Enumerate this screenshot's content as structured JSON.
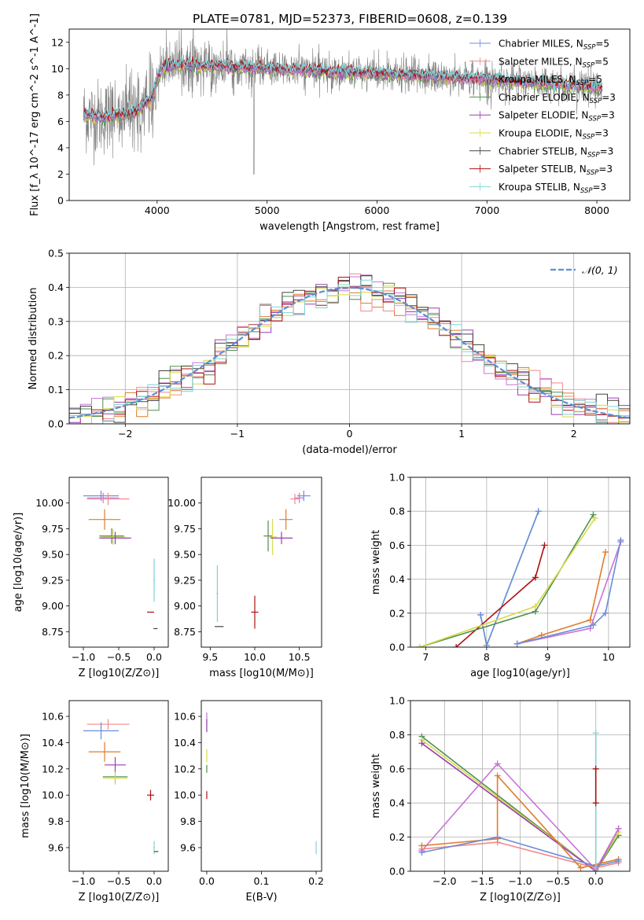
{
  "figure": {
    "title": "PLATE=0781, MJD=52373, FIBERID=0608, z=0.139"
  },
  "series_styles": [
    {
      "name": "Chabrier MILES, N_SSP=5",
      "color": "#6b8cd8"
    },
    {
      "name": "Salpeter MILES, N_SSP=5",
      "color": "#f08a8a"
    },
    {
      "name": "Kroupa MILES, N_SSP=5",
      "color": "#c874d6"
    },
    {
      "name": "Chabrier ELODIE, N_SSP=3",
      "color": "#4e8f4e"
    },
    {
      "name": "Salpeter ELODIE, N_SSP=3",
      "color": "#9a3fb0"
    },
    {
      "name": "Kroupa ELODIE, N_SSP=3",
      "color": "#d9d94a"
    },
    {
      "name": "Chabrier STELIB, N_SSP=3",
      "color": "#444444"
    },
    {
      "name": "Salpeter STELIB, N_SSP=3",
      "color": "#b01010"
    },
    {
      "name": "Kroupa STELIB, N_SSP=3",
      "color": "#7fd3d6"
    },
    {
      "name": "",
      "color": "#e07b2a"
    },
    {
      "name": "",
      "color": "#8ab83a"
    }
  ],
  "chart_data": [
    {
      "id": "spectrum",
      "type": "line",
      "title": "PLATE=0781, MJD=52373, FIBERID=0608, z=0.139",
      "xlabel": "wavelength [Angstrom, rest frame]",
      "ylabel": "Flux [f_λ 10^-17 erg cm^-2 s^-1 A^-1]",
      "xlim": [
        3200,
        8300
      ],
      "ylim": [
        0,
        13
      ],
      "xticks": [
        4000,
        5000,
        6000,
        7000,
        8000
      ],
      "yticks": [
        0,
        2,
        4,
        6,
        8,
        10,
        12
      ],
      "legend_position": "top-right",
      "legend": [
        "Chabrier MILES, N_SSP=5",
        "Salpeter MILES, N_SSP=5",
        "Kroupa MILES, N_SSP=5",
        "Chabrier ELODIE, N_SSP=3",
        "Salpeter ELODIE, N_SSP=3",
        "Kroupa ELODIE, N_SSP=3",
        "Chabrier STELIB, N_SSP=3",
        "Salpeter STELIB, N_SSP=3",
        "Kroupa STELIB, N_SSP=3"
      ],
      "data_series": {
        "name": "data",
        "color": "#808080"
      },
      "model_trend": {
        "x": [
          3350,
          3500,
          3800,
          3950,
          4050,
          4200,
          4500,
          5000,
          5500,
          6000,
          6500,
          7000,
          7500,
          8000
        ],
        "y": [
          6.5,
          6.3,
          6.7,
          7.8,
          10.1,
          10.3,
          10.2,
          10.0,
          9.8,
          9.6,
          9.4,
          9.2,
          8.9,
          8.6
        ]
      }
    },
    {
      "id": "residuals",
      "type": "line",
      "xlabel": "(data-model)/error",
      "ylabel": "Normed distribution",
      "xlim": [
        -2.5,
        2.5
      ],
      "ylim": [
        0,
        0.5
      ],
      "xticks": [
        -2,
        -1,
        0,
        1,
        2
      ],
      "yticks": [
        0.0,
        0.1,
        0.2,
        0.3,
        0.4,
        0.5
      ],
      "grid": true,
      "legend_position": "top-right",
      "reference_curve": {
        "name": "N(0,1)",
        "color": "#5a8fd6",
        "style": "dashed"
      },
      "bin_width": 0.1
    },
    {
      "id": "age_vs_Z",
      "type": "scatter",
      "xlabel": "Z [log10(Z/Z⊙)]",
      "ylabel": "age [log10(age/yr)]",
      "xlim": [
        -1.2,
        0.2
      ],
      "ylim": [
        8.6,
        10.25
      ],
      "xticks": [
        -1.0,
        -0.5,
        0.0
      ],
      "yticks": [
        8.75,
        9.0,
        9.25,
        9.5,
        9.75,
        10.0
      ],
      "points": [
        {
          "x": -0.75,
          "y": 10.07,
          "xerr": 0.5,
          "yerr": 0.1,
          "c": 0
        },
        {
          "x": -0.72,
          "y": 10.05,
          "xerr": 0.45,
          "yerr": 0.1,
          "c": 2
        },
        {
          "x": -0.65,
          "y": 10.04,
          "xerr": 0.6,
          "yerr": 0.12,
          "c": 1
        },
        {
          "x": -0.7,
          "y": 9.84,
          "xerr": 0.45,
          "yerr": 0.2,
          "c": 9
        },
        {
          "x": -0.6,
          "y": 9.68,
          "xerr": 0.35,
          "yerr": 0.15,
          "c": 3
        },
        {
          "x": -0.58,
          "y": 9.67,
          "xerr": 0.35,
          "yerr": 0.15,
          "c": 5
        },
        {
          "x": -0.55,
          "y": 9.66,
          "xerr": 0.45,
          "yerr": 0.12,
          "c": 4
        },
        {
          "x": 0.0,
          "y": 9.25,
          "xerr": 0.02,
          "yerr": 0.42,
          "c": 8
        },
        {
          "x": -0.05,
          "y": 8.94,
          "xerr": 0.1,
          "yerr": 0.0,
          "c": 7
        },
        {
          "x": 0.02,
          "y": 8.78,
          "xerr": 0.06,
          "yerr": 0.0,
          "c": 6
        }
      ]
    },
    {
      "id": "age_vs_mass",
      "type": "scatter",
      "xlabel": "mass [log10(M/M⊙)]",
      "ylabel": "",
      "xlim": [
        9.4,
        10.75
      ],
      "ylim": [
        8.6,
        10.25
      ],
      "xticks": [
        9.5,
        10.0,
        10.5
      ],
      "yticks": [
        8.75,
        9.0,
        9.25,
        9.5,
        9.75,
        10.0
      ],
      "points": [
        {
          "x": 10.55,
          "y": 10.07,
          "xerr": 0.15,
          "yerr": 0.1,
          "c": 0
        },
        {
          "x": 10.5,
          "y": 10.05,
          "xerr": 0.1,
          "yerr": 0.1,
          "c": 2
        },
        {
          "x": 10.45,
          "y": 10.04,
          "xerr": 0.1,
          "yerr": 0.1,
          "c": 1
        },
        {
          "x": 10.35,
          "y": 9.84,
          "xerr": 0.15,
          "yerr": 0.2,
          "c": 9
        },
        {
          "x": 10.15,
          "y": 9.68,
          "xerr": 0.1,
          "yerr": 0.3,
          "c": 3
        },
        {
          "x": 10.2,
          "y": 9.67,
          "xerr": 0.1,
          "yerr": 0.35,
          "c": 5
        },
        {
          "x": 10.3,
          "y": 9.66,
          "xerr": 0.25,
          "yerr": 0.12,
          "c": 4
        },
        {
          "x": 9.58,
          "y": 9.12,
          "xerr": 0.02,
          "yerr": 0.55,
          "c": 8
        },
        {
          "x": 9.6,
          "y": 8.8,
          "xerr": 0.1,
          "yerr": 0.0,
          "c": 6
        },
        {
          "x": 10.0,
          "y": 8.94,
          "xerr": 0.08,
          "yerr": 0.32,
          "c": 7
        }
      ]
    },
    {
      "id": "weight_vs_age",
      "type": "line",
      "xlabel": "age [log10(age/yr)]",
      "ylabel": "mass weight",
      "xlim": [
        6.75,
        10.35
      ],
      "ylim": [
        0,
        1
      ],
      "xticks": [
        7,
        8,
        9,
        10
      ],
      "yticks": [
        0.0,
        0.2,
        0.4,
        0.6,
        0.8,
        1.0
      ],
      "grid": true,
      "series": [
        {
          "c": 8,
          "x": [
            7.9,
            8.0,
            8.85
          ],
          "y": [
            0.19,
            0.01,
            0.8
          ]
        },
        {
          "c": 0,
          "x": [
            7.9,
            8.0,
            8.85
          ],
          "y": [
            0.19,
            0.01,
            0.8
          ]
        },
        {
          "c": 7,
          "x": [
            7.5,
            8.8,
            8.95
          ],
          "y": [
            0.0,
            0.41,
            0.6
          ]
        },
        {
          "c": 3,
          "x": [
            6.9,
            8.8,
            9.75
          ],
          "y": [
            0.0,
            0.21,
            0.78
          ]
        },
        {
          "c": 5,
          "x": [
            6.9,
            8.8,
            9.78
          ],
          "y": [
            0.0,
            0.24,
            0.76
          ]
        },
        {
          "c": 9,
          "x": [
            8.5,
            8.9,
            9.7,
            9.95
          ],
          "y": [
            0.02,
            0.07,
            0.16,
            0.56
          ]
        },
        {
          "c": 2,
          "x": [
            8.5,
            9.7,
            10.2
          ],
          "y": [
            0.02,
            0.11,
            0.62
          ]
        },
        {
          "c": 0,
          "x": [
            8.5,
            9.75,
            9.95,
            10.2
          ],
          "y": [
            0.02,
            0.13,
            0.2,
            0.63
          ]
        }
      ]
    },
    {
      "id": "mass_vs_Z",
      "type": "scatter",
      "xlabel": "Z [log10(Z/Z⊙)]",
      "ylabel": "mass [log10(M/M⊙)]",
      "xlim": [
        -1.2,
        0.2
      ],
      "ylim": [
        9.42,
        10.72
      ],
      "xticks": [
        -1.0,
        -0.5,
        0.0
      ],
      "yticks": [
        9.6,
        9.8,
        10.0,
        10.2,
        10.4,
        10.6
      ],
      "points": [
        {
          "x": -0.65,
          "y": 10.54,
          "xerr": 0.6,
          "yerr": 0.08,
          "c": 1
        },
        {
          "x": -0.75,
          "y": 10.49,
          "xerr": 0.5,
          "yerr": 0.13,
          "c": 0
        },
        {
          "x": -0.7,
          "y": 10.33,
          "xerr": 0.45,
          "yerr": 0.15,
          "c": 9
        },
        {
          "x": -0.55,
          "y": 10.23,
          "xerr": 0.3,
          "yerr": 0.12,
          "c": 4
        },
        {
          "x": -0.55,
          "y": 10.14,
          "xerr": 0.35,
          "yerr": 0.1,
          "c": 3
        },
        {
          "x": -0.55,
          "y": 10.13,
          "xerr": 0.35,
          "yerr": 0.1,
          "c": 5
        },
        {
          "x": -0.05,
          "y": 10.0,
          "xerr": 0.1,
          "yerr": 0.08,
          "c": 7
        },
        {
          "x": 0.0,
          "y": 9.6,
          "xerr": 0.02,
          "yerr": 0.1,
          "c": 8
        },
        {
          "x": 0.03,
          "y": 9.57,
          "xerr": 0.06,
          "yerr": 0.0,
          "c": 6
        }
      ]
    },
    {
      "id": "mass_vs_EBV",
      "type": "scatter",
      "xlabel": "E(B-V)",
      "ylabel": "",
      "xlim": [
        -0.01,
        0.21
      ],
      "ylim": [
        9.42,
        10.72
      ],
      "xticks": [
        0.0,
        0.1,
        0.2
      ],
      "yticks": [
        9.6,
        9.8,
        10.0,
        10.2,
        10.4,
        10.6
      ],
      "points": [
        {
          "x": 0.0,
          "y": 10.58,
          "xerr": 0,
          "yerr": 0.1,
          "c": 2
        },
        {
          "x": 0.0,
          "y": 10.53,
          "xerr": 0,
          "yerr": 0.1,
          "c": 4
        },
        {
          "x": 0.0,
          "y": 10.3,
          "xerr": 0,
          "yerr": 0.1,
          "c": 5
        },
        {
          "x": 0.0,
          "y": 10.2,
          "xerr": 0,
          "yerr": 0.06,
          "c": 3
        },
        {
          "x": 0.0,
          "y": 10.0,
          "xerr": 0,
          "yerr": 0.06,
          "c": 7
        },
        {
          "x": 0.2,
          "y": 9.6,
          "xerr": 0,
          "yerr": 0.1,
          "c": 8
        }
      ]
    },
    {
      "id": "weight_vs_Z",
      "type": "line",
      "xlabel": "Z [log10(Z/Z⊙)]",
      "ylabel": "mass weight",
      "xlim": [
        -2.45,
        0.45
      ],
      "ylim": [
        0,
        1
      ],
      "xticks": [
        -2.0,
        -1.5,
        -1.0,
        -0.5,
        0.0
      ],
      "yticks": [
        0.0,
        0.2,
        0.4,
        0.6,
        0.8,
        1.0
      ],
      "grid": true,
      "series": [
        {
          "c": 3,
          "x": [
            -2.3,
            0.0,
            0.3
          ],
          "y": [
            0.79,
            0.0,
            0.21
          ]
        },
        {
          "c": 5,
          "x": [
            -2.3,
            0.0,
            0.3
          ],
          "y": [
            0.77,
            0.0,
            0.23
          ]
        },
        {
          "c": 4,
          "x": [
            -2.3,
            0.0,
            0.3
          ],
          "y": [
            0.75,
            0.0,
            0.25
          ]
        },
        {
          "c": 2,
          "x": [
            -2.3,
            -1.3,
            0.0,
            0.3
          ],
          "y": [
            0.12,
            0.63,
            0.01,
            0.25
          ]
        },
        {
          "c": 1,
          "x": [
            -2.3,
            -1.3,
            0.0,
            0.3
          ],
          "y": [
            0.13,
            0.17,
            0.02,
            0.05
          ]
        },
        {
          "c": 9,
          "x": [
            -2.3,
            -1.3,
            -1.3,
            -0.2,
            0.3
          ],
          "y": [
            0.15,
            0.19,
            0.56,
            0.02,
            0.07
          ]
        },
        {
          "c": 0,
          "x": [
            -2.3,
            -1.3,
            0.0,
            0.3
          ],
          "y": [
            0.11,
            0.2,
            0.03,
            0.06
          ]
        },
        {
          "c": 8,
          "x": [
            0.0,
            0.0
          ],
          "y": [
            0.0,
            0.81
          ]
        },
        {
          "c": 7,
          "x": [
            0.0,
            0.0
          ],
          "y": [
            0.4,
            0.6
          ]
        }
      ]
    }
  ]
}
